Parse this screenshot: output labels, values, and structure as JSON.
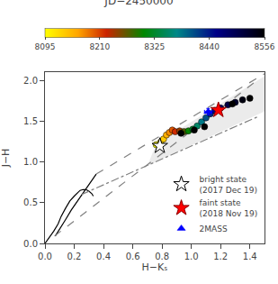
{
  "chart_data": {
    "type": "scatter",
    "title": "JD−2450000",
    "xlabel": "H−Kₛ",
    "ylabel": "J−H",
    "xlim": [
      0.0,
      1.5
    ],
    "ylim": [
      0.0,
      2.1
    ],
    "xticks": [
      {
        "value": 0.0,
        "label": "0.0"
      },
      0.2,
      0.4,
      0.6,
      0.8,
      {
        "value": 1.0,
        "label": "1.0"
      },
      1.2,
      1.4
    ],
    "yticks": [
      {
        "value": 0.0,
        "label": "0.0"
      },
      0.5,
      {
        "value": 1.0,
        "label": "1.0"
      },
      1.5,
      {
        "value": 2.0,
        "label": "2.0"
      }
    ],
    "grid": false,
    "legend": "lower right",
    "colorbar_range": [
      8095,
      8556
    ],
    "colorbar_ticks": [
      8095,
      8210,
      8325,
      8440,
      8556
    ],
    "series": [
      {
        "type": "area",
        "color": "#e8e8e8",
        "x": [
          0.7,
          0.76,
          1.5,
          1.5
        ],
        "y": [
          0.95,
          1.22,
          2.05,
          1.62
        ]
      },
      {
        "type": "line",
        "color": "black",
        "line_style": "solid",
        "x": [
          0.0,
          0.03,
          0.06,
          0.09,
          0.11,
          0.14,
          0.17,
          0.2,
          0.22,
          0.24,
          0.26,
          0.28,
          0.3,
          0.32,
          0.33
        ],
        "y": [
          0.0,
          0.07,
          0.15,
          0.24,
          0.33,
          0.43,
          0.52,
          0.58,
          0.62,
          0.65,
          0.66,
          0.66,
          0.64,
          0.61,
          0.58
        ]
      },
      {
        "type": "line",
        "color": "black",
        "line_style": "solid",
        "x": [
          0.07,
          0.1,
          0.14,
          0.18,
          0.24,
          0.3,
          0.35
        ],
        "y": [
          0.09,
          0.17,
          0.29,
          0.41,
          0.57,
          0.72,
          0.85
        ]
      },
      {
        "type": "line",
        "color": "gray",
        "line_style": "dashed",
        "x": [
          0.35,
          1.5
        ],
        "y": [
          0.85,
          2.08
        ]
      },
      {
        "type": "line",
        "color": "gray",
        "line_style": "dashed",
        "x": [
          0.065,
          1.45
        ],
        "y": [
          0.09,
          2.0
        ]
      },
      {
        "type": "line",
        "color": "gray",
        "line_style": "dashdot",
        "x": [
          0.25,
          1.45
        ],
        "y": [
          0.6,
          1.55
        ]
      },
      {
        "type": "scatter",
        "marker": "circle",
        "x": [
          0.76,
          0.79,
          0.81,
          0.83,
          0.85,
          0.87,
          0.89,
          0.92,
          0.95,
          0.98,
          1.01,
          1.04,
          1.07,
          1.1,
          1.13,
          1.16,
          1.2,
          1.25,
          1.3,
          1.35,
          1.4
        ],
        "y": [
          1.21,
          1.24,
          1.28,
          1.33,
          1.36,
          1.39,
          1.37,
          1.38,
          1.37,
          1.38,
          1.4,
          1.44,
          1.49,
          1.54,
          1.59,
          1.63,
          1.66,
          1.7,
          1.73,
          1.76,
          1.78
        ],
        "jd": [
          8095,
          8115,
          8135,
          8155,
          8175,
          8200,
          8220,
          8245,
          8270,
          8300,
          8325,
          8355,
          8380,
          8405,
          8430,
          8455,
          8480,
          8505,
          8525,
          8545,
          8556
        ]
      },
      {
        "type": "scatter",
        "marker": "circle",
        "color": "black",
        "x": [
          0.93,
          1.02,
          1.09,
          1.28
        ],
        "y": [
          1.35,
          1.39,
          1.43,
          1.71
        ]
      },
      {
        "name": "bright state\n(2017 Dec 19)",
        "type": "scatter",
        "marker": "star",
        "color": "white",
        "x": [
          0.785
        ],
        "y": [
          1.195
        ]
      },
      {
        "name": "faint state\n(2018 Nov 19)",
        "type": "scatter",
        "marker": "star",
        "color": "red",
        "x": [
          1.185
        ],
        "y": [
          1.635
        ]
      },
      {
        "name": "2MASS",
        "type": "scatter",
        "marker": "triangle-up",
        "color": "blue",
        "x": [
          1.115
        ],
        "y": [
          1.615
        ],
        "x_err": [
          0.025
        ],
        "y_err": [
          0.04
        ]
      }
    ]
  }
}
